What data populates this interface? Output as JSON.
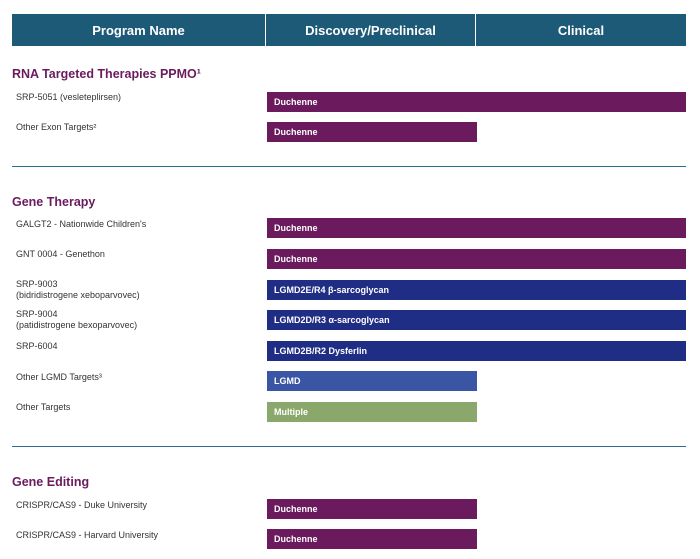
{
  "header": {
    "program_name": "Program Name",
    "discovery": "Discovery/Preclinical",
    "clinical": "Clinical"
  },
  "sections": {
    "rna": {
      "title": "RNA Targeted Therapies PPMO¹",
      "rows": [
        {
          "name": "SRP-5051 (vesleteplirsen)",
          "bar": "Duchenne",
          "stage": "clinical",
          "color": "#6a1a5d"
        },
        {
          "name": "Other Exon Targets²",
          "bar": "Duchenne",
          "stage": "discovery",
          "color": "#6a1a5d"
        }
      ]
    },
    "gene_therapy": {
      "title": "Gene Therapy",
      "rows": [
        {
          "name": "GALGT2 - Nationwide Children's",
          "bar": "Duchenne",
          "stage": "clinical",
          "color": "#6a1a5d"
        },
        {
          "name": "GNT 0004 - Genethon",
          "bar": "Duchenne",
          "stage": "clinical",
          "color": "#6a1a5d"
        },
        {
          "name": "SRP-9003",
          "subname": "(bidridistrogene xeboparvovec)",
          "bar": "LGMD2E/R4 β-sarcoglycan",
          "stage": "clinical",
          "color": "#1f2d85"
        },
        {
          "name": "SRP-9004",
          "subname": "(patidistrogene bexoparvovec)",
          "bar": "LGMD2D/R3 α-sarcoglycan",
          "stage": "clinical",
          "color": "#1f2d85"
        },
        {
          "name": "SRP-6004",
          "bar": "LGMD2B/R2 Dysferlin",
          "stage": "clinical",
          "color": "#1f2d85"
        },
        {
          "name": "Other LGMD Targets³",
          "bar": "LGMD",
          "stage": "discovery",
          "color": "#3b55a5"
        },
        {
          "name": "Other Targets",
          "bar": "Multiple",
          "stage": "discovery",
          "color": "#8aa86b"
        }
      ]
    },
    "gene_editing": {
      "title": "Gene Editing",
      "rows": [
        {
          "name": "CRISPR/CAS9 - Duke University",
          "bar": "Duchenne",
          "stage": "discovery",
          "color": "#6a1a5d"
        },
        {
          "name": "CRISPR/CAS9 - Harvard University",
          "bar": "Duchenne",
          "stage": "discovery",
          "color": "#6a1a5d"
        }
      ]
    }
  }
}
